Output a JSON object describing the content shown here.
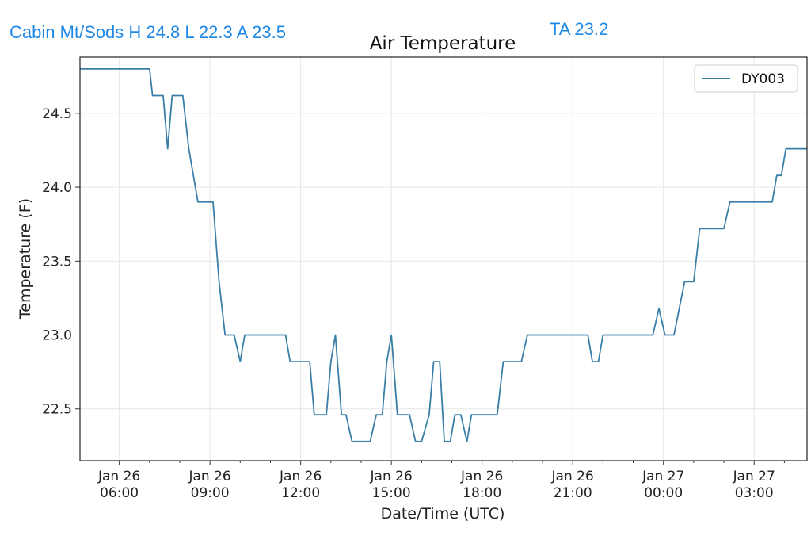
{
  "header": {
    "station_summary": "Cabin Mt/Sods H 24.8 L 22.3 A 23.5",
    "ta_summary": "TA 23.2"
  },
  "colors": {
    "header_text": "#1e88e5",
    "series_line": "#3a7fa8",
    "grid": "#e6e6e6"
  },
  "chart_data": {
    "type": "line",
    "title": "Air Temperature",
    "xlabel": "Date/Time (UTC)",
    "ylabel": "Temperature (F)",
    "x_unit": "hours since Jan 26 00:00 UTC",
    "xlim": [
      4.7,
      28.75
    ],
    "ylim": [
      22.15,
      24.88
    ],
    "grid": true,
    "legend_position": "top-right",
    "x_ticks": [
      {
        "value": 6,
        "line1": "Jan 26",
        "line2": "06:00"
      },
      {
        "value": 9,
        "line1": "Jan 26",
        "line2": "09:00"
      },
      {
        "value": 12,
        "line1": "Jan 26",
        "line2": "12:00"
      },
      {
        "value": 15,
        "line1": "Jan 26",
        "line2": "15:00"
      },
      {
        "value": 18,
        "line1": "Jan 26",
        "line2": "18:00"
      },
      {
        "value": 21,
        "line1": "Jan 26",
        "line2": "21:00"
      },
      {
        "value": 24,
        "line1": "Jan 27",
        "line2": "00:00"
      },
      {
        "value": 27,
        "line1": "Jan 27",
        "line2": "03:00"
      }
    ],
    "y_ticks": [
      "22.5",
      "23.0",
      "23.5",
      "24.0",
      "24.5"
    ],
    "series": [
      {
        "name": "DY003",
        "points": [
          [
            4.7,
            24.8
          ],
          [
            7.0,
            24.8
          ],
          [
            7.1,
            24.62
          ],
          [
            7.45,
            24.62
          ],
          [
            7.6,
            24.26
          ],
          [
            7.75,
            24.62
          ],
          [
            8.1,
            24.62
          ],
          [
            8.3,
            24.26
          ],
          [
            8.6,
            23.9
          ],
          [
            9.1,
            23.9
          ],
          [
            9.3,
            23.36
          ],
          [
            9.5,
            23.0
          ],
          [
            9.8,
            23.0
          ],
          [
            10.0,
            22.82
          ],
          [
            10.15,
            23.0
          ],
          [
            11.5,
            23.0
          ],
          [
            11.65,
            22.82
          ],
          [
            12.3,
            22.82
          ],
          [
            12.45,
            22.46
          ],
          [
            12.85,
            22.46
          ],
          [
            13.0,
            22.82
          ],
          [
            13.15,
            23.0
          ],
          [
            13.35,
            22.46
          ],
          [
            13.5,
            22.46
          ],
          [
            13.7,
            22.28
          ],
          [
            14.3,
            22.28
          ],
          [
            14.5,
            22.46
          ],
          [
            14.7,
            22.46
          ],
          [
            14.85,
            22.82
          ],
          [
            15.0,
            23.0
          ],
          [
            15.2,
            22.46
          ],
          [
            15.6,
            22.46
          ],
          [
            15.8,
            22.28
          ],
          [
            16.0,
            22.28
          ],
          [
            16.25,
            22.46
          ],
          [
            16.4,
            22.82
          ],
          [
            16.6,
            22.82
          ],
          [
            16.75,
            22.28
          ],
          [
            16.95,
            22.28
          ],
          [
            17.1,
            22.46
          ],
          [
            17.3,
            22.46
          ],
          [
            17.5,
            22.28
          ],
          [
            17.65,
            22.46
          ],
          [
            18.5,
            22.46
          ],
          [
            18.7,
            22.82
          ],
          [
            19.3,
            22.82
          ],
          [
            19.5,
            23.0
          ],
          [
            21.5,
            23.0
          ],
          [
            21.65,
            22.82
          ],
          [
            21.85,
            22.82
          ],
          [
            22.0,
            23.0
          ],
          [
            23.65,
            23.0
          ],
          [
            23.85,
            23.18
          ],
          [
            24.05,
            23.0
          ],
          [
            24.35,
            23.0
          ],
          [
            24.7,
            23.36
          ],
          [
            25.0,
            23.36
          ],
          [
            25.2,
            23.72
          ],
          [
            26.0,
            23.72
          ],
          [
            26.2,
            23.9
          ],
          [
            27.6,
            23.9
          ],
          [
            27.75,
            24.08
          ],
          [
            27.9,
            24.08
          ],
          [
            28.05,
            24.26
          ],
          [
            28.75,
            24.26
          ]
        ]
      }
    ]
  }
}
